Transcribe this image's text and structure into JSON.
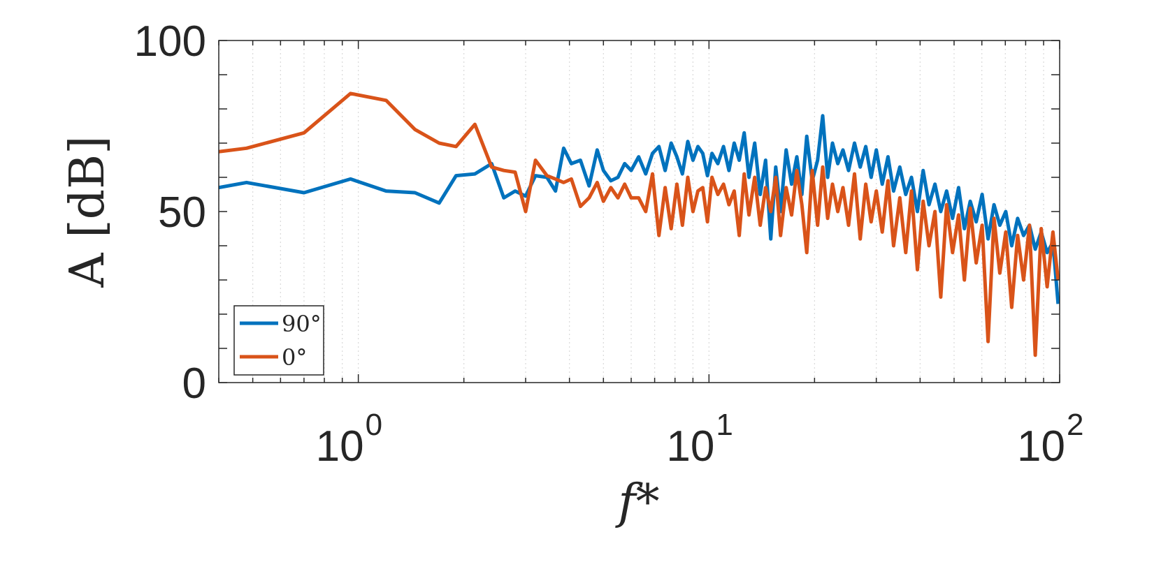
{
  "chart_data": {
    "type": "line",
    "xscale": "log",
    "xlim": [
      0.4,
      100
    ],
    "ylim": [
      0,
      100
    ],
    "xlabel": "f*",
    "ylabel": "A [dB]",
    "xticks": [
      {
        "value": 1,
        "base": "10",
        "exp": "0"
      },
      {
        "value": 10,
        "base": "10",
        "exp": "1"
      },
      {
        "value": 100,
        "base": "10",
        "exp": "2"
      }
    ],
    "yticks": [
      {
        "value": 0,
        "label": "0"
      },
      {
        "value": 50,
        "label": "50"
      },
      {
        "value": 100,
        "label": "100"
      }
    ],
    "grid": "x-minor-dotted",
    "legend": {
      "position": "bottom-left"
    },
    "colors": {
      "s90": "#0072BD",
      "s0": "#D95319",
      "axis": "#262626",
      "grid": "#d9d9d9"
    },
    "series": [
      {
        "name": "90°",
        "key": "s90",
        "x": [
          0.4,
          0.48,
          0.7,
          0.95,
          1.2,
          1.45,
          1.7,
          1.9,
          2.15,
          2.4,
          2.6,
          2.8,
          3.0,
          3.2,
          3.45,
          3.65,
          3.85,
          4.05,
          4.3,
          4.55,
          4.8,
          5.0,
          5.25,
          5.5,
          5.75,
          6.0,
          6.3,
          6.6,
          6.9,
          7.2,
          7.5,
          7.8,
          8.1,
          8.4,
          8.7,
          9.0,
          9.3,
          9.6,
          9.9,
          10.2,
          10.6,
          11.0,
          11.4,
          11.8,
          12.2,
          12.6,
          13.0,
          13.5,
          14.0,
          14.5,
          15.0,
          15.5,
          16.0,
          16.6,
          17.2,
          17.8,
          18.4,
          19.0,
          19.7,
          20.4,
          21.1,
          21.8,
          22.5,
          23.3,
          24.1,
          25.0,
          26.0,
          27.0,
          28.0,
          29.0,
          30.0,
          31.2,
          32.4,
          33.6,
          35.0,
          36.4,
          37.8,
          39.3,
          40.8,
          42.4,
          44.1,
          45.8,
          47.6,
          49.5,
          51.5,
          53.5,
          55.6,
          57.8,
          60.1,
          62.5,
          65.0,
          67.5,
          70.2,
          73.0,
          75.9,
          78.9,
          82.0,
          85.2,
          88.6,
          92.1,
          95.7,
          99.0
        ],
        "y": [
          57,
          58.5,
          55.5,
          59.5,
          56,
          55.5,
          52.5,
          60.5,
          61,
          64,
          54,
          56,
          54.5,
          60.5,
          60,
          56,
          68.5,
          64,
          65,
          57.5,
          68,
          62,
          59,
          60,
          64,
          62,
          66,
          61,
          67,
          69,
          62,
          70,
          66,
          61,
          70.5,
          65,
          69,
          67,
          60.5,
          67,
          64,
          69,
          62,
          70,
          65,
          73,
          60,
          70,
          55,
          65,
          42,
          63,
          50,
          68,
          58,
          66,
          55,
          72,
          59,
          65,
          78,
          60,
          70,
          64,
          68,
          62,
          70,
          63,
          69,
          60,
          68,
          58,
          66,
          56,
          63,
          55,
          60,
          50,
          62,
          52,
          58,
          50,
          56,
          48,
          57,
          45,
          53,
          47,
          55,
          42,
          52,
          46,
          50,
          40,
          48,
          43,
          46,
          39,
          44,
          38,
          41,
          23
        ]
      },
      {
        "name": "0°",
        "key": "s0",
        "x": [
          0.4,
          0.48,
          0.7,
          0.95,
          1.2,
          1.45,
          1.7,
          1.9,
          2.15,
          2.4,
          2.6,
          2.8,
          3.0,
          3.2,
          3.45,
          3.65,
          3.85,
          4.05,
          4.3,
          4.55,
          4.8,
          5.0,
          5.25,
          5.5,
          5.75,
          6.0,
          6.3,
          6.6,
          6.9,
          7.2,
          7.5,
          7.8,
          8.1,
          8.4,
          8.7,
          9.0,
          9.3,
          9.6,
          9.9,
          10.2,
          10.6,
          11.0,
          11.4,
          11.8,
          12.2,
          12.6,
          13.0,
          13.5,
          14.0,
          14.5,
          15.0,
          15.5,
          16.0,
          16.6,
          17.2,
          17.8,
          18.4,
          19.0,
          19.7,
          20.4,
          21.1,
          21.8,
          22.5,
          23.3,
          24.1,
          25.0,
          26.0,
          27.0,
          28.0,
          29.0,
          30.0,
          31.2,
          32.4,
          33.6,
          35.0,
          36.4,
          37.8,
          39.3,
          40.8,
          42.4,
          44.1,
          45.8,
          47.6,
          49.5,
          51.5,
          53.5,
          55.6,
          57.8,
          60.1,
          62.5,
          65.0,
          67.5,
          70.2,
          73.0,
          75.9,
          78.9,
          82.0,
          85.2,
          88.6,
          92.1,
          95.7,
          99.0
        ],
        "y": [
          67.5,
          68.5,
          73,
          84.5,
          82.5,
          74,
          70,
          69,
          75.5,
          63,
          62,
          61.5,
          50,
          65,
          60.5,
          59.5,
          58.5,
          59.5,
          51.5,
          54,
          58.5,
          53,
          57,
          54,
          58,
          54,
          54,
          50,
          61,
          43,
          57,
          45,
          58,
          46,
          60,
          50,
          56,
          57,
          47,
          60,
          55,
          58,
          52,
          56,
          43,
          61,
          49,
          60,
          46,
          57,
          50,
          60,
          43,
          57,
          49,
          62,
          52,
          38,
          62,
          46,
          63,
          48,
          58,
          50,
          57,
          46,
          61,
          42,
          58,
          47,
          56,
          44,
          59,
          40,
          54,
          38,
          56,
          33,
          53,
          40,
          50,
          25,
          52,
          38,
          49,
          30,
          51,
          35,
          46,
          12,
          48,
          32,
          44,
          22,
          43,
          30,
          46,
          8,
          45,
          28,
          44,
          30
        ]
      }
    ]
  }
}
